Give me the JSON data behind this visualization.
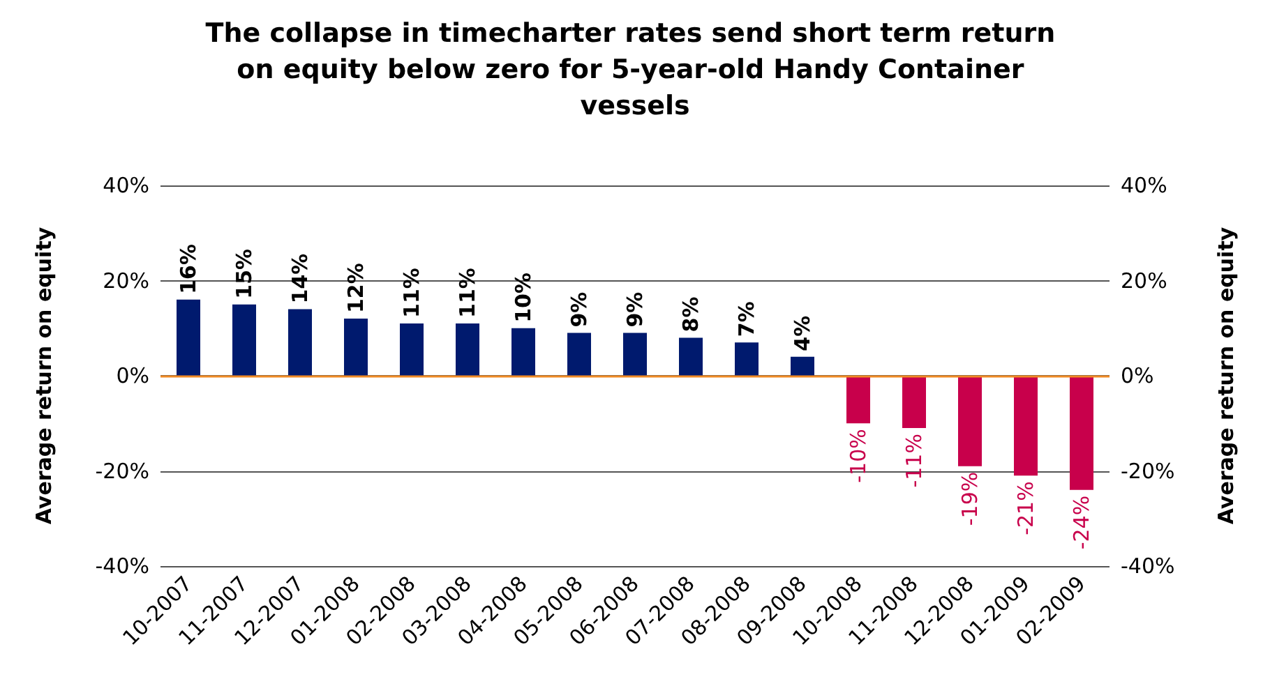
{
  "chart_data": {
    "type": "bar",
    "title": "The collapse in timecharter rates send short term return on equity below zero for 5-year-old Handy Container vessels",
    "ylabel": "Average return on equity",
    "y2label": "Average return on equity",
    "categories": [
      "10-2007",
      "11-2007",
      "12-2007",
      "01-2008",
      "02-2008",
      "03-2008",
      "04-2008",
      "05-2008",
      "06-2008",
      "07-2008",
      "08-2008",
      "09-2008",
      "10-2008",
      "11-2008",
      "12-2008",
      "01-2009",
      "02-2009"
    ],
    "values": [
      16,
      15,
      14,
      12,
      11,
      11,
      10,
      9,
      9,
      8,
      7,
      4,
      -10,
      -11,
      -19,
      -21,
      -24
    ],
    "colors": [
      "#001a6e",
      "#001a6e",
      "#001a6e",
      "#001a6e",
      "#001a6e",
      "#001a6e",
      "#001a6e",
      "#001a6e",
      "#001a6e",
      "#001a6e",
      "#001a6e",
      "#001a6e",
      "#c8004b",
      "#c8004b",
      "#c8004b",
      "#c8004b",
      "#c8004b"
    ],
    "value_labels": [
      "16%",
      "15%",
      "14%",
      "12%",
      "11%",
      "11%",
      "10%",
      "9%",
      "9%",
      "8%",
      "7%",
      "4%",
      "-10%",
      "-11%",
      "-19%",
      "-21%",
      "-24%"
    ],
    "ylim": [
      -40,
      40
    ],
    "yticks": [
      {
        "value": -40,
        "label": "-40%"
      },
      {
        "value": -20,
        "label": "-20%"
      },
      {
        "value": 0,
        "label": "0%"
      },
      {
        "value": 20,
        "label": "20%"
      },
      {
        "value": 40,
        "label": "40%"
      }
    ],
    "y2lim": [
      -40,
      40
    ],
    "y2ticks": [
      {
        "value": -40,
        "label": "-40%"
      },
      {
        "value": -20,
        "label": "-20%"
      },
      {
        "value": 0,
        "label": "0%"
      },
      {
        "value": 20,
        "label": "20%"
      },
      {
        "value": 40,
        "label": "40%"
      }
    ],
    "ref_lines": [
      {
        "axis": "y",
        "value": 0,
        "label": null,
        "color": "#f08a24"
      }
    ],
    "grid": "y"
  }
}
